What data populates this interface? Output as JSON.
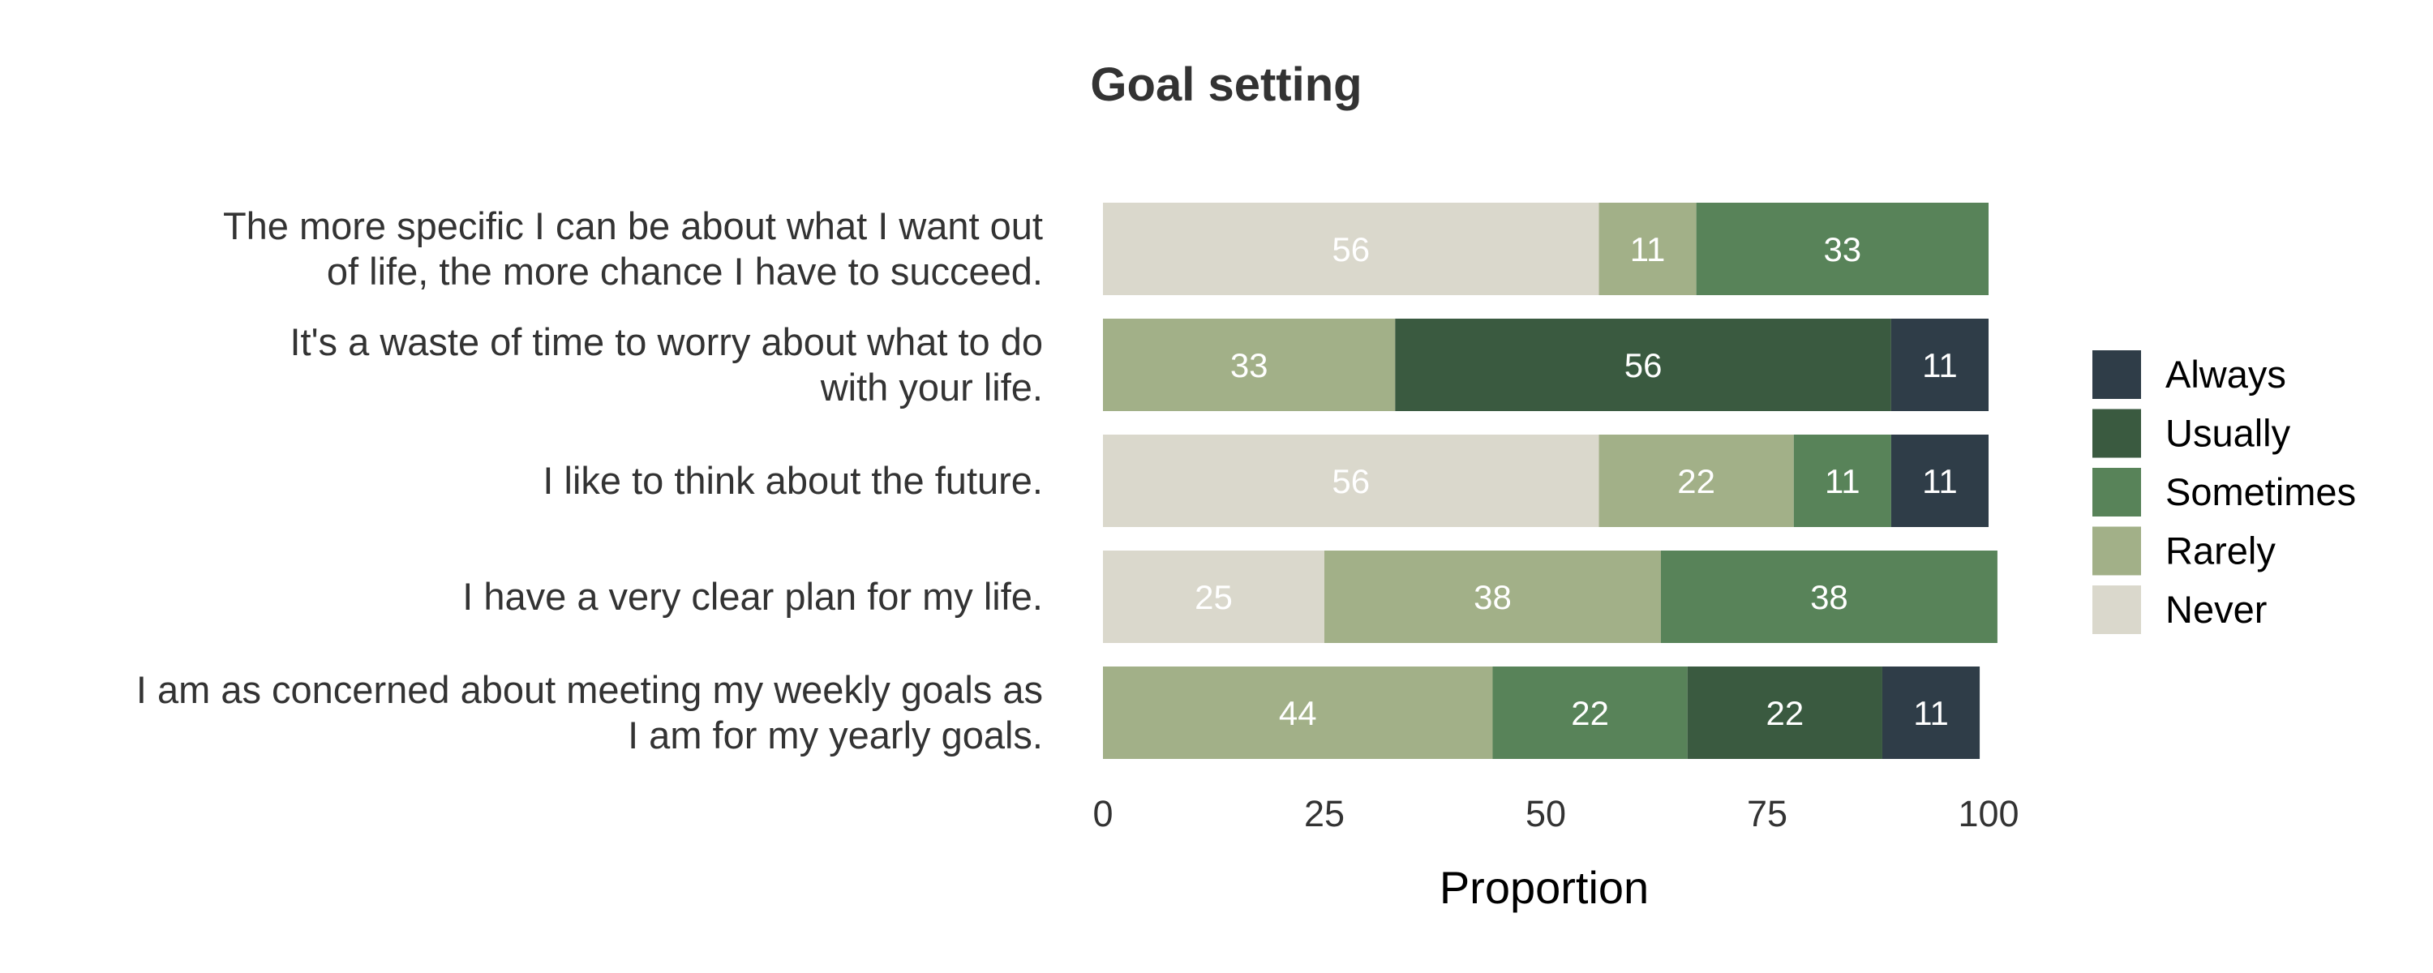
{
  "chart_data": {
    "type": "bar",
    "orientation": "horizontal",
    "stacked": true,
    "title": "Goal setting",
    "xlabel": "Proportion",
    "ylabel": "",
    "xlim": [
      0,
      100
    ],
    "xticks": [
      "0",
      "25",
      "50",
      "75",
      "100"
    ],
    "grid": false,
    "legend_position": "right",
    "categories": [
      {
        "lines": [
          "The more specific I can be about what I want out",
          "of life, the more chance I have to succeed."
        ]
      },
      {
        "lines": [
          "It's a waste of time to worry about what to do",
          "with your life."
        ]
      },
      {
        "lines": [
          "I like to think about the future."
        ]
      },
      {
        "lines": [
          "I have a very clear plan for my life."
        ]
      },
      {
        "lines": [
          "I am as concerned about meeting my weekly goals as",
          "I am for my yearly goals."
        ]
      }
    ],
    "series": [
      {
        "name": "Never",
        "color": "#dad8cc",
        "values": [
          56,
          0,
          56,
          25,
          0
        ]
      },
      {
        "name": "Rarely",
        "color": "#a2b088",
        "values": [
          11,
          33,
          22,
          38,
          44
        ]
      },
      {
        "name": "Sometimes",
        "color": "#588359",
        "values": [
          33,
          0,
          11,
          38,
          22
        ]
      },
      {
        "name": "Usually",
        "color": "#3a5a40",
        "values": [
          0,
          56,
          0,
          0,
          22
        ]
      },
      {
        "name": "Always",
        "color": "#2f3d48",
        "values": [
          0,
          11,
          11,
          0,
          11
        ]
      }
    ],
    "legend_order": [
      "Always",
      "Usually",
      "Sometimes",
      "Rarely",
      "Never"
    ]
  }
}
